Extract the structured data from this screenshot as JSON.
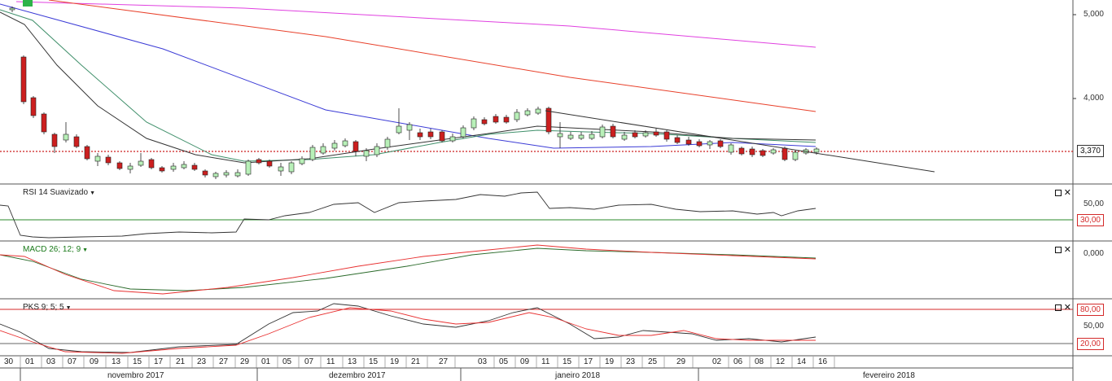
{
  "price_axis": {
    "labels": [
      "5,000",
      "4,000"
    ],
    "current_price": "3,370"
  },
  "rsi": {
    "title": "RSI 14 Suavizado",
    "levels": [
      "50,00",
      "30,00"
    ]
  },
  "macd": {
    "title": "MACD 26; 12; 9",
    "levels": [
      "0,000"
    ]
  },
  "pks": {
    "title": "PKS 9; 5; 5",
    "levels": [
      "50,00",
      "80,00",
      "20,00"
    ]
  },
  "window_controls": {
    "maximize_icon": "square-icon",
    "close_icon": "close-icon",
    "close_glyph": "✕"
  },
  "timeline": {
    "days": [
      "30",
      "01",
      "03",
      "07",
      "09",
      "13",
      "15",
      "17",
      "21",
      "23",
      "27",
      "29",
      "01",
      "05",
      "07",
      "11",
      "13",
      "15",
      "19",
      "21",
      "27",
      "03",
      "05",
      "09",
      "11",
      "15",
      "17",
      "19",
      "23",
      "25",
      "29",
      "02",
      "06",
      "08",
      "12",
      "14",
      "16"
    ],
    "months": [
      "novembro 2017",
      "dezembro 2017",
      "janeiro 2018",
      "fevereiro 2018"
    ]
  },
  "colors": {
    "up": "#b8f0b8",
    "down": "#cc1f1f",
    "ma_black": "#333333",
    "ma_green": "#3f8f6a",
    "ma_blue": "#3b3bd6",
    "ma_red": "#e8402a",
    "ma_magenta": "#e040e0",
    "dotted": "#cc1f1f"
  }
}
